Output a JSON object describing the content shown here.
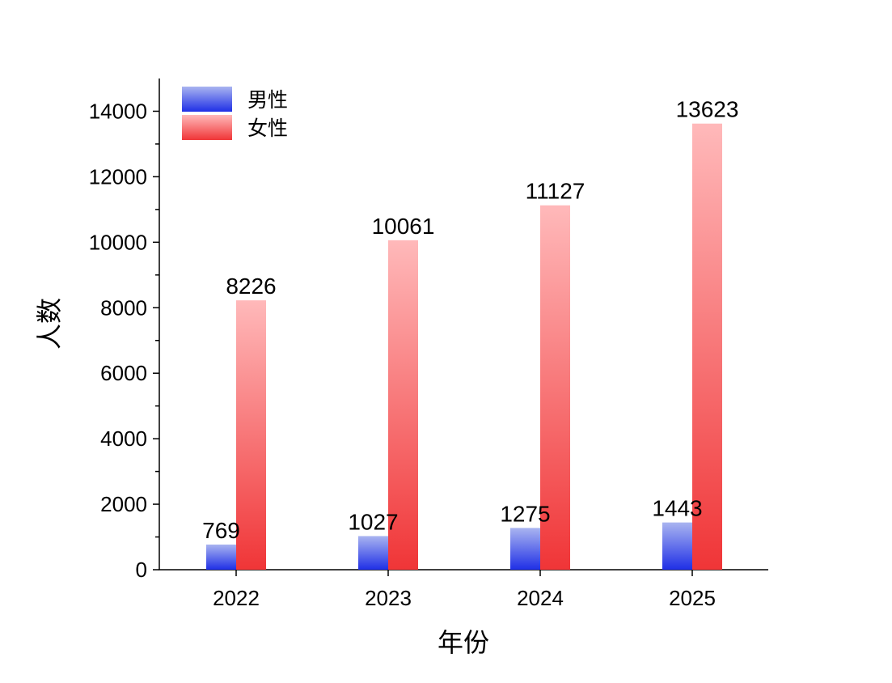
{
  "chart_data": {
    "type": "bar",
    "categories": [
      "2022",
      "2023",
      "2024",
      "2025"
    ],
    "series": [
      {
        "name": "男性",
        "values": [
          769,
          1027,
          1275,
          1443
        ],
        "color_light": "#a9b4f0",
        "color_dark": "#1f2fe6"
      },
      {
        "name": "女性",
        "values": [
          8226,
          10061,
          11127,
          13623
        ],
        "color_light": "#ffb9ba",
        "color_dark": "#f03537"
      }
    ],
    "title": "",
    "xlabel": "年份",
    "ylabel": "人数",
    "ylim": [
      0,
      15000
    ],
    "yticks": [
      0,
      2000,
      4000,
      6000,
      8000,
      10000,
      12000,
      14000
    ],
    "data_labels": true,
    "grid": false,
    "legend": "top-left",
    "gradient": "vertical"
  }
}
